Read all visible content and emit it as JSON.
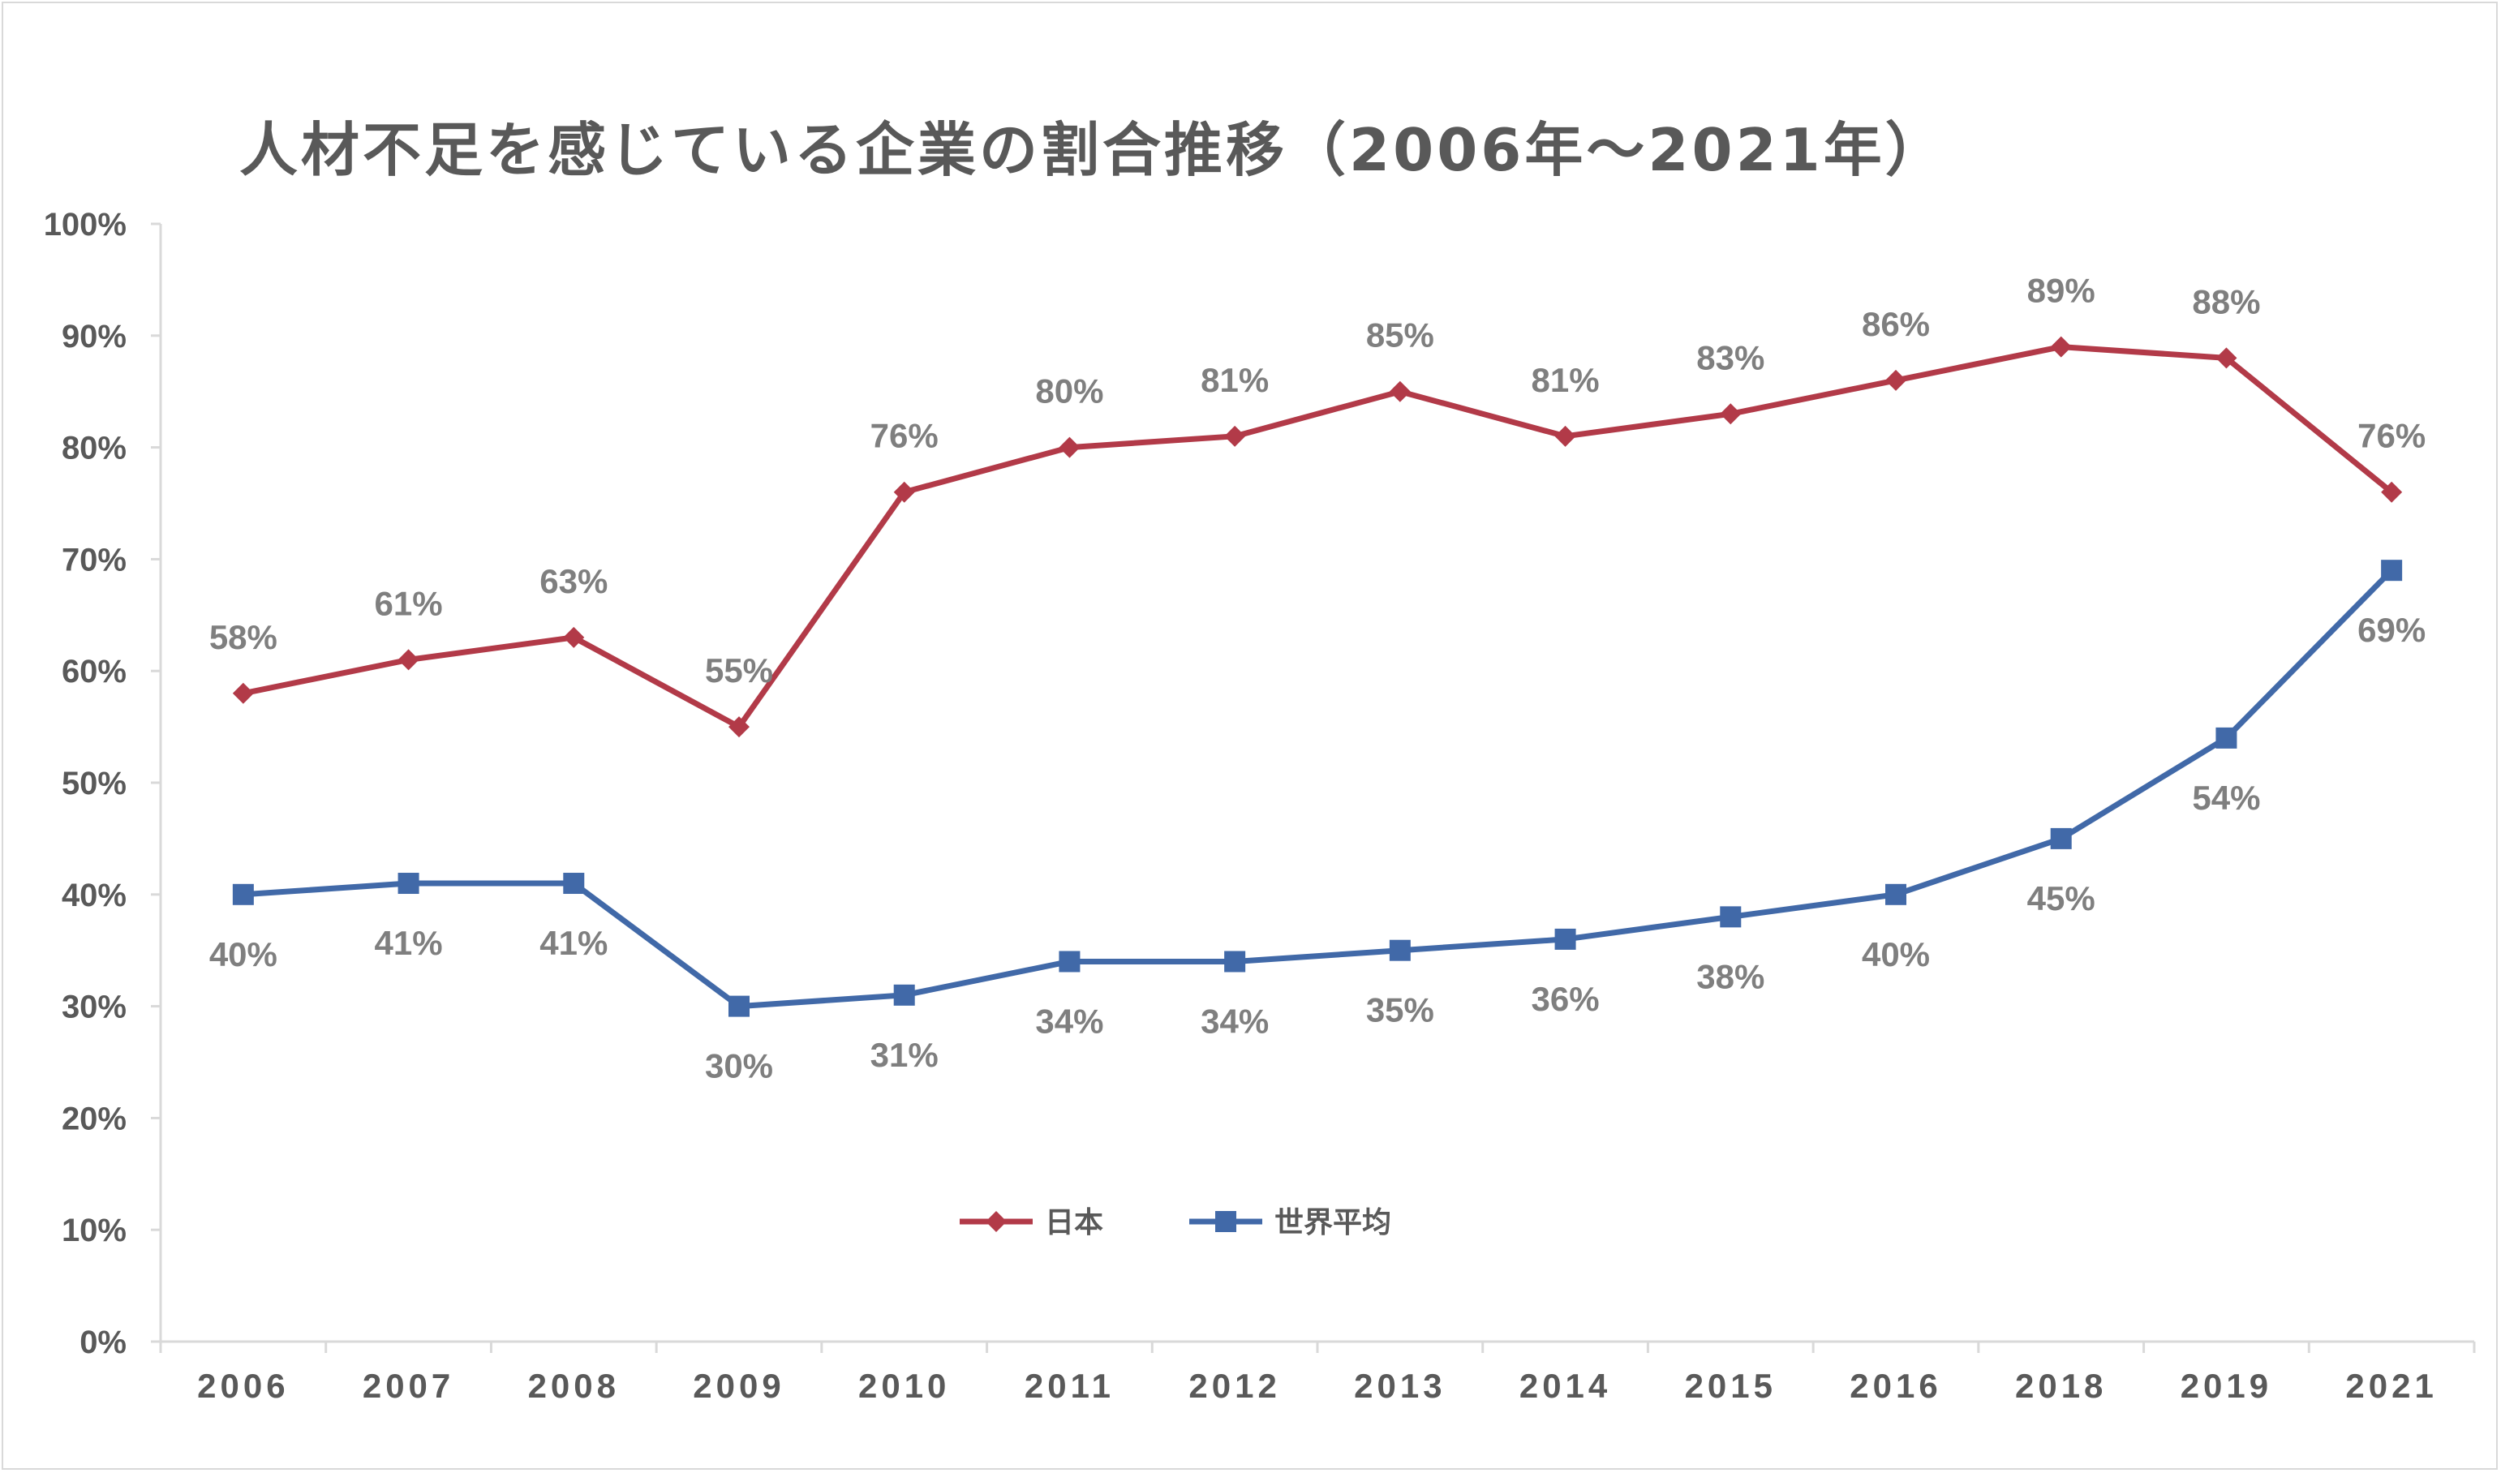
{
  "chart_data": {
    "type": "line",
    "title": "人材不足を感じている企業の割合推移（2006年～2021年）",
    "xlabel": "",
    "ylabel": "",
    "categories": [
      "2006",
      "2007",
      "2008",
      "2009",
      "2010",
      "2011",
      "2012",
      "2013",
      "2014",
      "2015",
      "2016",
      "2018",
      "2019",
      "2021"
    ],
    "ylim": [
      0,
      100
    ],
    "yticks": [
      "0%",
      "10%",
      "20%",
      "30%",
      "40%",
      "50%",
      "60%",
      "70%",
      "80%",
      "90%",
      "100%"
    ],
    "legend_position": "bottom-center",
    "grid": false,
    "series": [
      {
        "name": "日本",
        "color": "#b23a48",
        "marker": "diamond",
        "label_position": "above",
        "values": [
          58,
          61,
          63,
          55,
          76,
          80,
          81,
          85,
          81,
          83,
          86,
          89,
          88,
          76
        ],
        "labels": [
          "58%",
          "61%",
          "63%",
          "55%",
          "76%",
          "80%",
          "81%",
          "85%",
          "81%",
          "83%",
          "86%",
          "89%",
          "88%",
          "76%"
        ]
      },
      {
        "name": "世界平均",
        "color": "#4169a8",
        "marker": "square",
        "label_position": "below",
        "values": [
          40,
          41,
          41,
          30,
          31,
          34,
          34,
          35,
          36,
          38,
          40,
          45,
          54,
          69
        ],
        "labels": [
          "40%",
          "41%",
          "41%",
          "30%",
          "31%",
          "34%",
          "34%",
          "35%",
          "36%",
          "38%",
          "40%",
          "45%",
          "54%",
          "69%"
        ]
      }
    ]
  }
}
